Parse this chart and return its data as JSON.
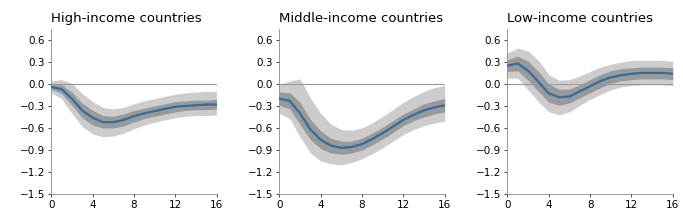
{
  "titles": [
    "High-income countries",
    "Middle-income countries",
    "Low-income countries"
  ],
  "x": [
    0,
    1,
    2,
    3,
    4,
    5,
    6,
    7,
    8,
    9,
    10,
    11,
    12,
    13,
    14,
    15,
    16
  ],
  "high_mean": [
    -0.04,
    -0.07,
    -0.2,
    -0.36,
    -0.46,
    -0.52,
    -0.52,
    -0.49,
    -0.44,
    -0.4,
    -0.37,
    -0.34,
    -0.31,
    -0.3,
    -0.29,
    -0.28,
    -0.28
  ],
  "high_ci68_lo": [
    -0.07,
    -0.13,
    -0.29,
    -0.46,
    -0.56,
    -0.6,
    -0.6,
    -0.57,
    -0.52,
    -0.47,
    -0.44,
    -0.41,
    -0.38,
    -0.36,
    -0.35,
    -0.35,
    -0.34
  ],
  "high_ci68_hi": [
    -0.01,
    -0.01,
    -0.11,
    -0.26,
    -0.36,
    -0.43,
    -0.44,
    -0.41,
    -0.36,
    -0.33,
    -0.3,
    -0.27,
    -0.24,
    -0.23,
    -0.22,
    -0.22,
    -0.21
  ],
  "high_ci95_lo": [
    -0.12,
    -0.2,
    -0.4,
    -0.58,
    -0.68,
    -0.72,
    -0.71,
    -0.67,
    -0.61,
    -0.56,
    -0.52,
    -0.49,
    -0.46,
    -0.44,
    -0.43,
    -0.43,
    -0.42
  ],
  "high_ci95_hi": [
    0.04,
    0.06,
    0.01,
    -0.13,
    -0.24,
    -0.32,
    -0.34,
    -0.32,
    -0.27,
    -0.23,
    -0.2,
    -0.17,
    -0.14,
    -0.12,
    -0.11,
    -0.1,
    -0.1
  ],
  "mid_mean": [
    -0.2,
    -0.23,
    -0.4,
    -0.62,
    -0.76,
    -0.84,
    -0.87,
    -0.86,
    -0.82,
    -0.75,
    -0.67,
    -0.58,
    -0.49,
    -0.42,
    -0.36,
    -0.32,
    -0.29
  ],
  "mid_ci68_lo": [
    -0.29,
    -0.34,
    -0.55,
    -0.76,
    -0.88,
    -0.94,
    -0.96,
    -0.94,
    -0.9,
    -0.83,
    -0.75,
    -0.66,
    -0.57,
    -0.5,
    -0.45,
    -0.41,
    -0.38
  ],
  "mid_ci68_hi": [
    -0.11,
    -0.12,
    -0.25,
    -0.48,
    -0.64,
    -0.74,
    -0.78,
    -0.78,
    -0.74,
    -0.67,
    -0.59,
    -0.5,
    -0.41,
    -0.34,
    -0.27,
    -0.23,
    -0.2
  ],
  "mid_ci95_lo": [
    -0.4,
    -0.47,
    -0.72,
    -0.94,
    -1.05,
    -1.09,
    -1.1,
    -1.07,
    -1.02,
    -0.95,
    -0.87,
    -0.78,
    -0.69,
    -0.62,
    -0.57,
    -0.53,
    -0.51
  ],
  "mid_ci95_hi": [
    -0.01,
    0.04,
    0.07,
    -0.19,
    -0.4,
    -0.55,
    -0.62,
    -0.63,
    -0.6,
    -0.53,
    -0.44,
    -0.35,
    -0.25,
    -0.17,
    -0.1,
    -0.05,
    -0.02
  ],
  "low_mean": [
    0.25,
    0.28,
    0.18,
    0.03,
    -0.13,
    -0.18,
    -0.17,
    -0.1,
    -0.03,
    0.04,
    0.09,
    0.12,
    0.14,
    0.15,
    0.15,
    0.15,
    0.14
  ],
  "low_ci68_lo": [
    0.17,
    0.18,
    0.05,
    -0.1,
    -0.25,
    -0.29,
    -0.26,
    -0.19,
    -0.12,
    -0.05,
    0.01,
    0.04,
    0.06,
    0.07,
    0.07,
    0.07,
    0.06
  ],
  "low_ci68_hi": [
    0.33,
    0.38,
    0.31,
    0.17,
    0.0,
    -0.07,
    -0.07,
    -0.01,
    0.06,
    0.13,
    0.18,
    0.21,
    0.22,
    0.23,
    0.23,
    0.23,
    0.22
  ],
  "low_ci95_lo": [
    0.08,
    0.08,
    -0.08,
    -0.24,
    -0.38,
    -0.42,
    -0.38,
    -0.29,
    -0.21,
    -0.14,
    -0.08,
    -0.04,
    -0.02,
    -0.01,
    -0.01,
    -0.01,
    -0.02
  ],
  "low_ci95_hi": [
    0.42,
    0.49,
    0.45,
    0.32,
    0.13,
    0.05,
    0.06,
    0.11,
    0.17,
    0.23,
    0.27,
    0.3,
    0.32,
    0.32,
    0.32,
    0.32,
    0.31
  ],
  "line_color": "#2E6DA4",
  "ci68_color": "#999999",
  "ci95_color": "#CCCCCC",
  "zero_line_color": "#999999",
  "ylim": [
    -1.5,
    0.75
  ],
  "yticks": [
    -1.5,
    -1.2,
    -0.9,
    -0.6,
    -0.3,
    0.0,
    0.3,
    0.6
  ],
  "xticks": [
    0,
    4,
    8,
    12,
    16
  ],
  "xlim": [
    0,
    16
  ],
  "title_fontsize": 9.5,
  "tick_fontsize": 7.5,
  "line_width": 1.6
}
